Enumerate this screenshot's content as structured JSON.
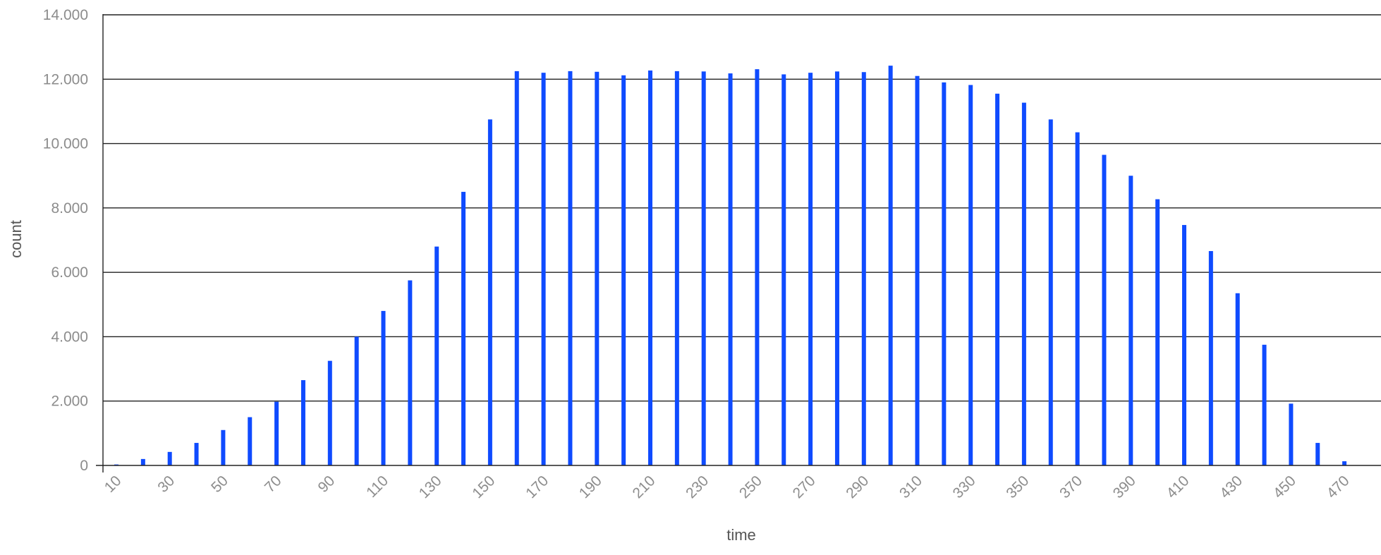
{
  "chart_data": {
    "type": "bar",
    "title": "",
    "xlabel": "time",
    "ylabel": "count",
    "ylim": [
      0,
      14000
    ],
    "y_ticks": [
      0,
      2000,
      4000,
      6000,
      8000,
      10000,
      12000,
      14000
    ],
    "y_tick_labels": [
      "0",
      "2.000",
      "4.000",
      "6.000",
      "8.000",
      "10.000",
      "12.000",
      "14.000"
    ],
    "x": [
      10,
      20,
      30,
      40,
      50,
      60,
      70,
      80,
      90,
      100,
      110,
      120,
      130,
      140,
      150,
      160,
      170,
      180,
      190,
      200,
      210,
      220,
      230,
      240,
      250,
      260,
      270,
      280,
      290,
      300,
      310,
      320,
      330,
      340,
      350,
      360,
      370,
      380,
      390,
      400,
      410,
      420,
      430,
      440,
      450,
      460,
      470
    ],
    "x_tick_labels": [
      "10",
      "30",
      "50",
      "70",
      "90",
      "110",
      "130",
      "150",
      "170",
      "190",
      "210",
      "230",
      "250",
      "270",
      "290",
      "310",
      "330",
      "350",
      "370",
      "390",
      "410",
      "430",
      "450",
      "470"
    ],
    "series": [
      {
        "values": [
          30,
          200,
          420,
          700,
          1100,
          1500,
          1980,
          2650,
          3250,
          4000,
          4800,
          5750,
          6800,
          8500,
          10750,
          12250,
          12200,
          12250,
          12230,
          12120,
          12270,
          12250,
          12240,
          12180,
          12310,
          12150,
          12200,
          12240,
          12220,
          12420,
          12100,
          11900,
          11820,
          11550,
          11270,
          10750,
          10350,
          9650,
          9000,
          8270,
          7470,
          6660,
          5350,
          3750,
          1920,
          700,
          130
        ]
      }
    ],
    "grid": true,
    "colors": {
      "bar": "#0f4bff",
      "grid": "#222222",
      "axis": "#222222",
      "tick_text": "#8c8c8c",
      "axis_title": "#555555"
    }
  }
}
